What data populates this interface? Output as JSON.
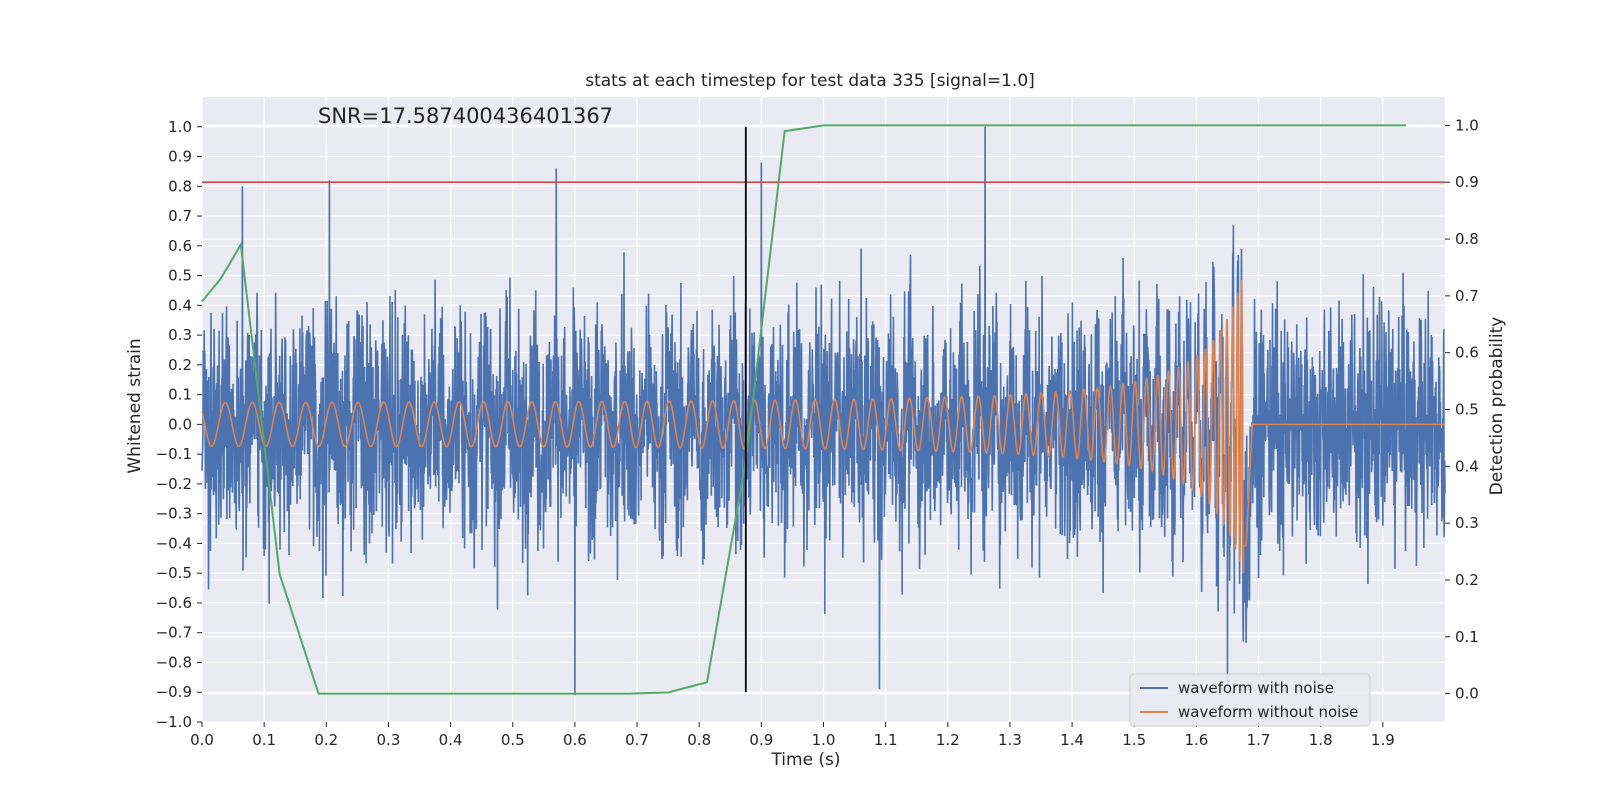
{
  "chart_data": {
    "type": "line",
    "title": "stats at each timestep for test data 335 [signal=1.0]",
    "annotation": "SNR=17.587400436401367",
    "xlabel": "Time (s)",
    "ylabel": "Whitened strain",
    "y2label": "Detection probability",
    "xlim": [
      0.0,
      2.0
    ],
    "ylim": [
      -1.0,
      1.1
    ],
    "y2lim": [
      -0.05,
      1.05
    ],
    "x_ticks": [
      "0.0",
      "0.1",
      "0.2",
      "0.3",
      "0.4",
      "0.5",
      "0.6",
      "0.7",
      "0.8",
      "0.9",
      "1.0",
      "1.1",
      "1.2",
      "1.3",
      "1.4",
      "1.5",
      "1.6",
      "1.7",
      "1.8",
      "1.9"
    ],
    "y_ticks": [
      "-1.0",
      "-0.9",
      "-0.8",
      "-0.7",
      "-0.6",
      "-0.5",
      "-0.4",
      "-0.3",
      "-0.2",
      "-0.1",
      "0.0",
      "0.1",
      "0.2",
      "0.3",
      "0.4",
      "0.5",
      "0.6",
      "0.7",
      "0.8",
      "0.9",
      "1.0"
    ],
    "y2_ticks": [
      "0.0",
      "0.1",
      "0.2",
      "0.3",
      "0.4",
      "0.5",
      "0.6",
      "0.7",
      "0.8",
      "0.9",
      "1.0"
    ],
    "grid": true,
    "legend_position": "lower-right",
    "series": [
      {
        "name": "waveform with noise",
        "color": "#4c72b0",
        "axis": "left",
        "description_kind": "noise",
        "sigma": 0.3,
        "peaks": [
          {
            "x": 0.065,
            "y": 0.8
          },
          {
            "x": 0.205,
            "y": 0.82
          },
          {
            "x": 0.57,
            "y": 0.86
          },
          {
            "x": 0.6,
            "y": -0.91
          },
          {
            "x": 0.9,
            "y": 0.88
          },
          {
            "x": 1.26,
            "y": 1.0
          },
          {
            "x": 1.09,
            "y": -0.89
          },
          {
            "x": 1.65,
            "y": -0.87
          }
        ]
      },
      {
        "name": "waveform without noise",
        "color": "#dd8452",
        "axis": "left",
        "description_kind": "chirp",
        "start_amplitude": 0.07,
        "peak_amplitude": 0.55,
        "start_frequency_hz": 20,
        "merger_time": 1.68,
        "end_time": 2.0
      },
      {
        "name": "",
        "color": "#55a868",
        "axis": "right",
        "x": [
          0.0,
          0.03,
          0.0625,
          0.125,
          0.1875,
          0.25,
          0.3125,
          0.375,
          0.4375,
          0.5,
          0.5625,
          0.625,
          0.6875,
          0.75,
          0.8125,
          0.875,
          0.9375,
          1.0,
          1.0625,
          1.25,
          1.5,
          1.75,
          1.9375
        ],
        "y": [
          0.69,
          0.73,
          0.79,
          0.21,
          0.0,
          0.0,
          0.0,
          0.0,
          0.0,
          0.0,
          0.0,
          0.0,
          0.0,
          0.002,
          0.02,
          0.41,
          0.99,
          1.0,
          1.0,
          1.0,
          1.0,
          1.0,
          1.0
        ]
      }
    ],
    "threshold_line": {
      "axis": "right",
      "y": 0.9,
      "color": "#c44e52"
    },
    "vertical_line": {
      "x": 0.875,
      "y_from": -0.9,
      "y_to": 1.0,
      "color": "#000000"
    }
  }
}
